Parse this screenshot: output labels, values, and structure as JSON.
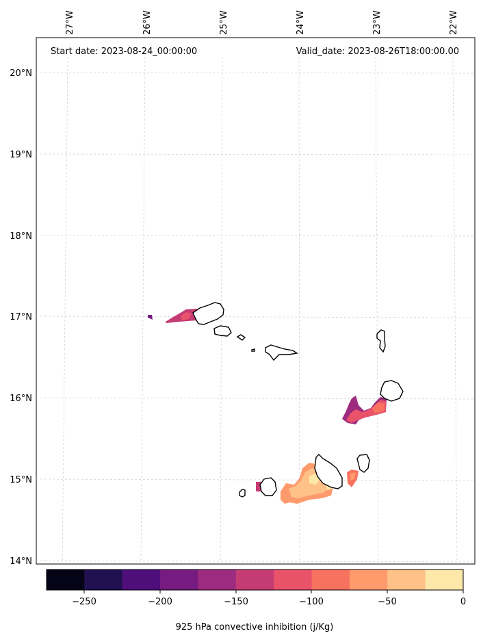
{
  "header": {
    "start_date": "Start date: 2023-08-24_00:00:00",
    "valid_date": "Valid_date: 2023-08-26T18:00:00.00"
  },
  "map": {
    "lon_labels": [
      "27°W",
      "26°W",
      "25°W",
      "24°W",
      "23°W",
      "22°W"
    ],
    "lat_labels": [
      "20°N",
      "19°N",
      "18°N",
      "17°N",
      "16°N",
      "15°N",
      "14°N"
    ],
    "gridlines": true
  },
  "colorbar": {
    "label": "925 hPa convective inhibition (j/Kg)",
    "tick_labels": [
      "−250",
      "−200",
      "−150",
      "−100",
      "−50",
      "0"
    ],
    "colors": [
      "#050416",
      "#221150",
      "#4f0f7b",
      "#761c81",
      "#9d2b7f",
      "#c53c74",
      "#e8536a",
      "#f8735f",
      "#fe9a6b",
      "#fec187",
      "#fde8a9"
    ]
  }
}
